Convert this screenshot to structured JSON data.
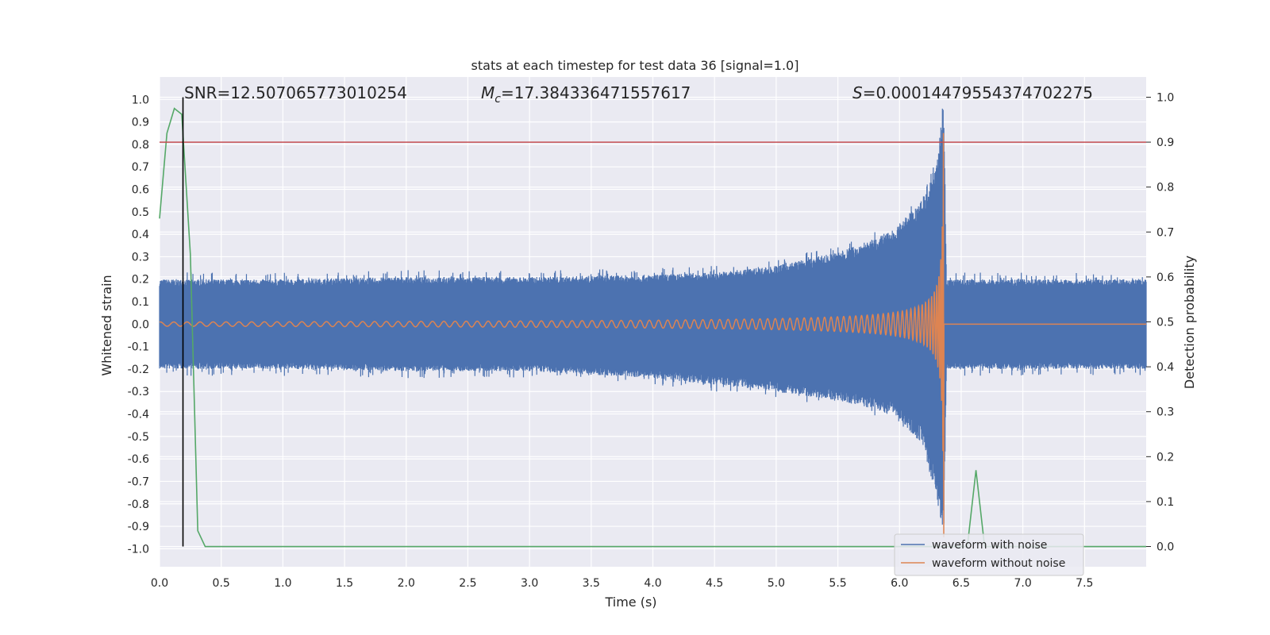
{
  "chart_data": {
    "type": "line",
    "title": "stats at each timestep for test data 36 [signal=1.0]",
    "xlabel": "Time (s)",
    "ylabel": "Whitened strain",
    "y2label": "Detection probability",
    "xlim": [
      0.0,
      8.0
    ],
    "ylim": [
      -1.08,
      1.1
    ],
    "y2lim": [
      -0.045,
      1.045
    ],
    "x_ticks": [
      "0.0",
      "0.5",
      "1.0",
      "1.5",
      "2.0",
      "2.5",
      "3.0",
      "3.5",
      "4.0",
      "4.5",
      "5.0",
      "5.5",
      "6.0",
      "6.5",
      "7.0",
      "7.5"
    ],
    "y_ticks": [
      "1.0",
      "0.9",
      "0.8",
      "0.7",
      "0.6",
      "0.5",
      "0.4",
      "0.3",
      "0.2",
      "0.1",
      "0.0",
      "-0.1",
      "-0.2",
      "-0.3",
      "-0.4",
      "-0.5",
      "-0.6",
      "-0.7",
      "-0.8",
      "-0.9",
      "-1.0"
    ],
    "y2_ticks": [
      "1.0",
      "0.9",
      "0.8",
      "0.7",
      "0.6",
      "0.5",
      "0.4",
      "0.3",
      "0.2",
      "0.1",
      "0.0"
    ],
    "grid": true,
    "background": "#eaeaf2",
    "annotations": {
      "snr": "SNR=12.507065773010254",
      "mc_symbol": "M",
      "mc_subscript": "c",
      "mc_value": "=17.384336471557617",
      "s_symbol": "S",
      "s_value": "=0.00014479554374702275"
    },
    "legend": {
      "placement": "bottom-right",
      "entries": [
        {
          "label": "waveform with noise",
          "color": "#4c72b0"
        },
        {
          "label": "waveform without noise",
          "color": "#dd8452"
        }
      ]
    },
    "series": [
      {
        "name": "waveform with noise",
        "axis": "left",
        "color": "#4c72b0",
        "envelope": {
          "x": [
            0.0,
            1.0,
            2.0,
            3.0,
            4.0,
            4.5,
            5.0,
            5.5,
            5.8,
            6.0,
            6.2,
            6.3,
            6.36,
            6.38,
            8.0
          ],
          "upper": [
            0.2,
            0.2,
            0.21,
            0.21,
            0.22,
            0.23,
            0.26,
            0.32,
            0.38,
            0.44,
            0.58,
            0.75,
            1.0,
            0.2,
            0.2
          ],
          "lower": [
            -0.2,
            -0.2,
            -0.21,
            -0.21,
            -0.24,
            -0.27,
            -0.3,
            -0.34,
            -0.38,
            -0.42,
            -0.55,
            -0.8,
            -0.92,
            -0.2,
            -0.2
          ]
        }
      },
      {
        "name": "waveform without noise",
        "axis": "left",
        "color": "#dd8452",
        "chirp": {
          "t_merger": 6.36,
          "amplitude_early": 0.012,
          "amplitude_peak": 0.95
        }
      },
      {
        "name": "Detection probability",
        "axis": "right",
        "color": "#55a868",
        "x": [
          0.0,
          0.06,
          0.12,
          0.18,
          0.25,
          0.31,
          0.37,
          0.5,
          1.0,
          2.0,
          3.0,
          4.0,
          5.0,
          6.0,
          6.55,
          6.62,
          6.69,
          7.0,
          8.0
        ],
        "values": [
          0.73,
          0.92,
          0.975,
          0.962,
          0.65,
          0.035,
          0.0,
          0.0,
          0.0,
          0.0,
          0.0,
          0.0,
          0.0,
          0.0,
          0.0,
          0.17,
          0.0,
          0.0,
          0.0
        ]
      }
    ],
    "reference_lines": [
      {
        "orientation": "horizontal",
        "axis": "right",
        "value": 0.9,
        "color": "#c44e52"
      },
      {
        "orientation": "vertical",
        "value": 0.19,
        "from": 0.0,
        "to": 1.0,
        "axis": "right",
        "color": "#000000"
      }
    ]
  }
}
